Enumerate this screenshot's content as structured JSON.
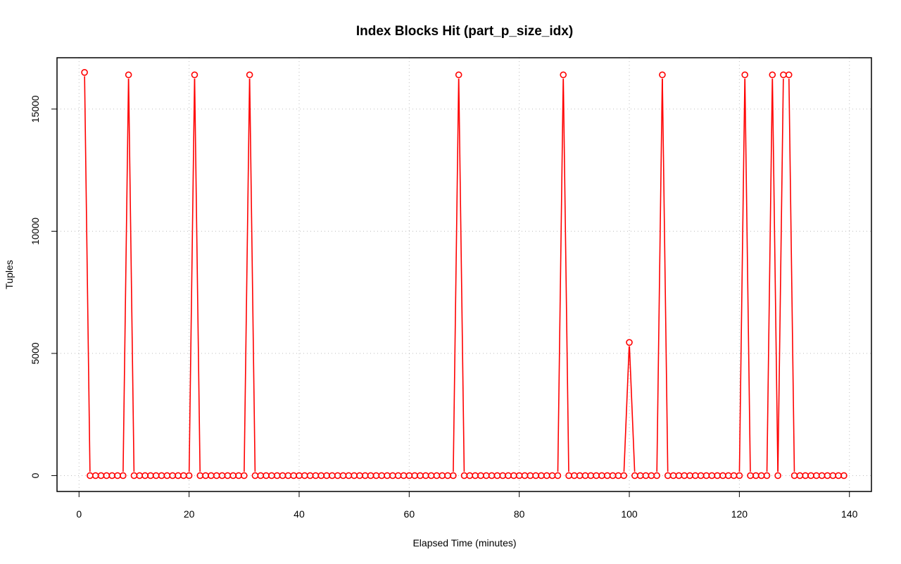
{
  "chart_data": {
    "type": "line",
    "title": "Index Blocks Hit (part_p_size_idx)",
    "xlabel": "Elapsed Time (minutes)",
    "ylabel": "Tuples",
    "xlim": [
      -4,
      144
    ],
    "ylim": [
      -650,
      17100
    ],
    "x_ticks": [
      0,
      20,
      40,
      60,
      80,
      100,
      120,
      140
    ],
    "y_ticks": [
      0,
      5000,
      10000,
      15000
    ],
    "grid": true,
    "line_color": "#ff0000",
    "marker": "open-circle",
    "series": [
      {
        "x": [
          1,
          2,
          3,
          4,
          5,
          6,
          7,
          8,
          9,
          10,
          11,
          12,
          13,
          14,
          15,
          16,
          17,
          18,
          19,
          20,
          21,
          22,
          23,
          24,
          25,
          26,
          27,
          28,
          29,
          30,
          31,
          32,
          33,
          34,
          35,
          36,
          37,
          38,
          39,
          40,
          41,
          42,
          43,
          44,
          45,
          46,
          47,
          48,
          49,
          50,
          51,
          52,
          53,
          54,
          55,
          56,
          57,
          58,
          59,
          60,
          61,
          62,
          63,
          64,
          65,
          66,
          67,
          68,
          69,
          70,
          71,
          72,
          73,
          74,
          75,
          76,
          77,
          78,
          79,
          80,
          81,
          82,
          83,
          84,
          85,
          86,
          87,
          88,
          89,
          90,
          91,
          92,
          93,
          94,
          95,
          96,
          97,
          98,
          99,
          100,
          101,
          102,
          103,
          104,
          105,
          106,
          107,
          108,
          109,
          110,
          111,
          112,
          113,
          114,
          115,
          116,
          117,
          118,
          119,
          120,
          121,
          122,
          123,
          124,
          125,
          126,
          127,
          128,
          129,
          130,
          131,
          132,
          133,
          134,
          135,
          136,
          137,
          138,
          139
        ],
        "values": [
          16500,
          0,
          0,
          0,
          0,
          0,
          0,
          0,
          16400,
          0,
          0,
          0,
          0,
          0,
          0,
          0,
          0,
          0,
          0,
          0,
          16400,
          0,
          0,
          0,
          0,
          0,
          0,
          0,
          0,
          0,
          16400,
          0,
          0,
          0,
          0,
          0,
          0,
          0,
          0,
          0,
          0,
          0,
          0,
          0,
          0,
          0,
          0,
          0,
          0,
          0,
          0,
          0,
          0,
          0,
          0,
          0,
          0,
          0,
          0,
          0,
          0,
          0,
          0,
          0,
          0,
          0,
          0,
          0,
          16400,
          0,
          0,
          0,
          0,
          0,
          0,
          0,
          0,
          0,
          0,
          0,
          0,
          0,
          0,
          0,
          0,
          0,
          0,
          16400,
          0,
          0,
          0,
          0,
          0,
          0,
          0,
          0,
          0,
          0,
          0,
          5450,
          0,
          0,
          0,
          0,
          0,
          16400,
          0,
          0,
          0,
          0,
          0,
          0,
          0,
          0,
          0,
          0,
          0,
          0,
          0,
          0,
          16400,
          0,
          0,
          0,
          0,
          16400,
          0,
          16400,
          16400,
          0,
          0,
          0,
          0,
          0,
          0,
          0,
          0,
          0,
          0
        ]
      }
    ]
  }
}
